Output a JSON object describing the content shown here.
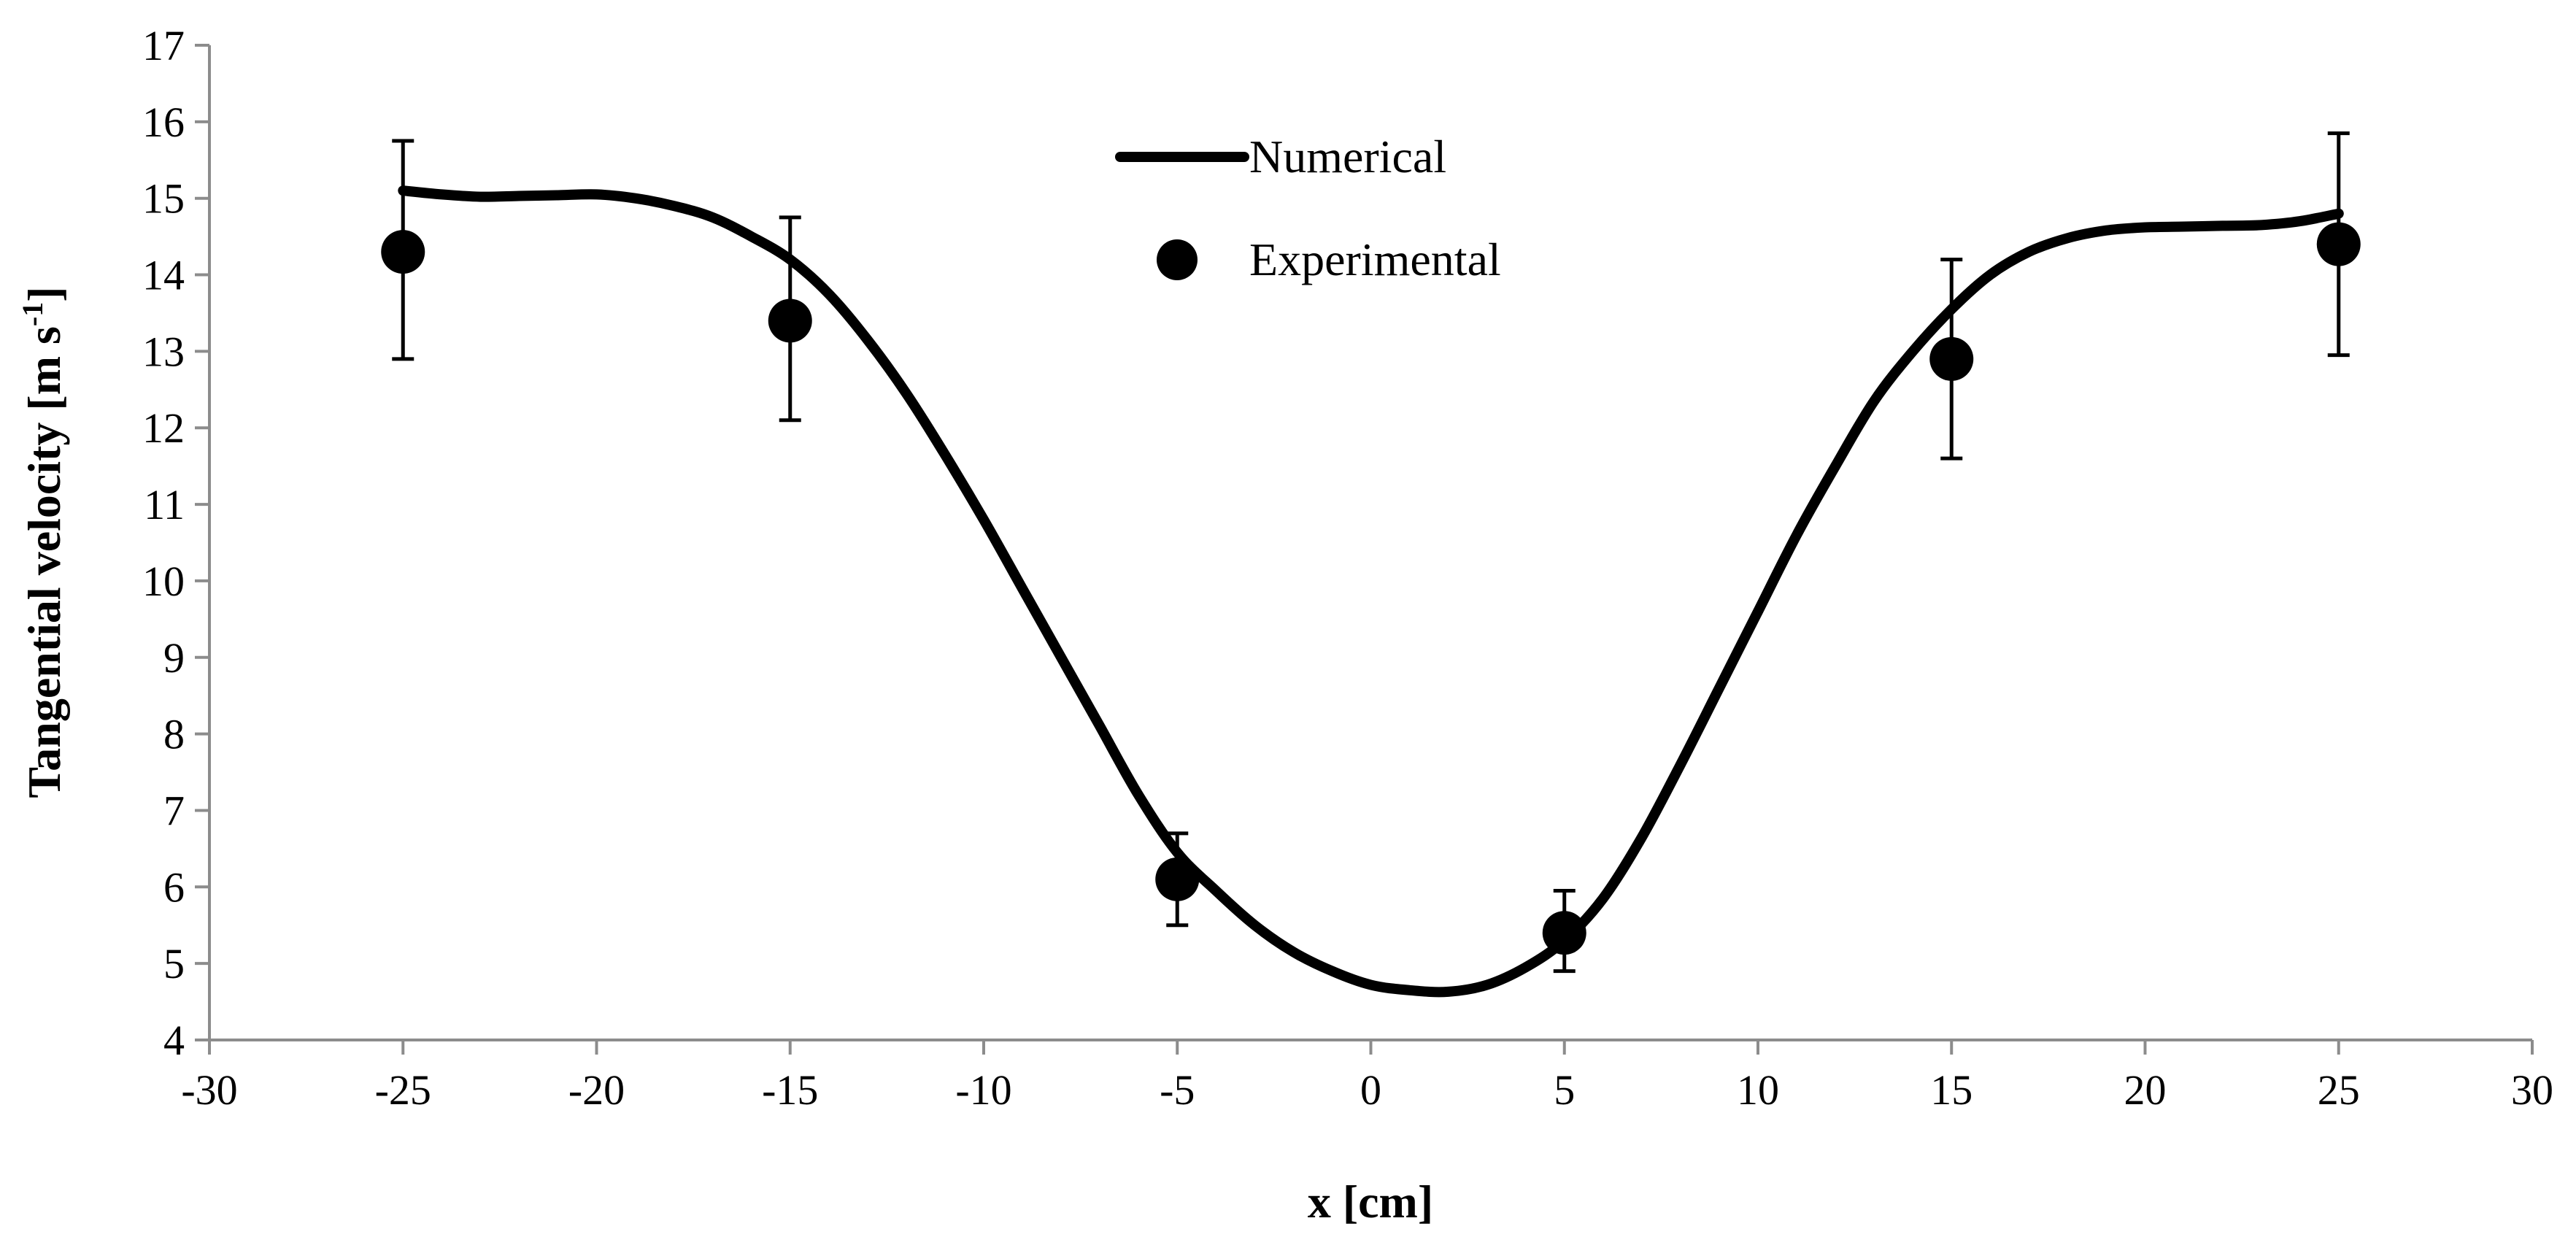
{
  "chart_data": {
    "type": "scatter",
    "xlabel": "x [cm]",
    "ylabel": {
      "main": "Tangential velocity [m s",
      "sup": "-1",
      "end": "]"
    },
    "xlim": [
      -30,
      30
    ],
    "ylim": [
      4,
      17
    ],
    "xticks": [
      -30,
      -25,
      -20,
      -15,
      -10,
      -5,
      0,
      5,
      10,
      15,
      20,
      25,
      30
    ],
    "yticks": [
      4,
      5,
      6,
      7,
      8,
      9,
      10,
      11,
      12,
      13,
      14,
      15,
      16,
      17
    ],
    "grid": false,
    "legend_position": "top-center",
    "series": [
      {
        "name": "Numerical",
        "kind": "line",
        "color": "#000000",
        "x": [
          -25,
          -24,
          -23,
          -22,
          -21,
          -20,
          -19,
          -18,
          -17,
          -16,
          -15,
          -14,
          -13,
          -12,
          -11,
          -10,
          -9,
          -8,
          -7,
          -6,
          -5,
          -4,
          -3,
          -2,
          -1,
          0,
          1,
          2,
          3,
          4,
          5,
          6,
          7,
          8,
          9,
          10,
          11,
          12,
          13,
          14,
          15,
          16,
          17,
          18,
          19,
          20,
          21,
          22,
          23,
          24,
          25
        ],
        "y": [
          15.1,
          15.05,
          15.02,
          15.03,
          15.04,
          15.05,
          15.0,
          14.9,
          14.75,
          14.5,
          14.2,
          13.75,
          13.15,
          12.45,
          11.65,
          10.8,
          9.9,
          9.0,
          8.1,
          7.2,
          6.45,
          5.95,
          5.5,
          5.15,
          4.9,
          4.72,
          4.65,
          4.63,
          4.72,
          4.95,
          5.3,
          5.85,
          6.65,
          7.6,
          8.6,
          9.6,
          10.6,
          11.5,
          12.35,
          13.0,
          13.55,
          14.0,
          14.3,
          14.48,
          14.58,
          14.62,
          14.63,
          14.64,
          14.65,
          14.7,
          14.8
        ]
      },
      {
        "name": "Experimental",
        "kind": "scatter",
        "color": "#000000",
        "x": [
          -25,
          -15,
          -5,
          5,
          15,
          25
        ],
        "y": [
          14.3,
          13.4,
          6.1,
          5.4,
          12.9,
          14.4
        ],
        "err_low": [
          12.9,
          12.1,
          5.5,
          4.9,
          11.6,
          12.95
        ],
        "err_high": [
          15.75,
          14.75,
          6.7,
          5.95,
          14.2,
          15.85
        ]
      }
    ]
  }
}
